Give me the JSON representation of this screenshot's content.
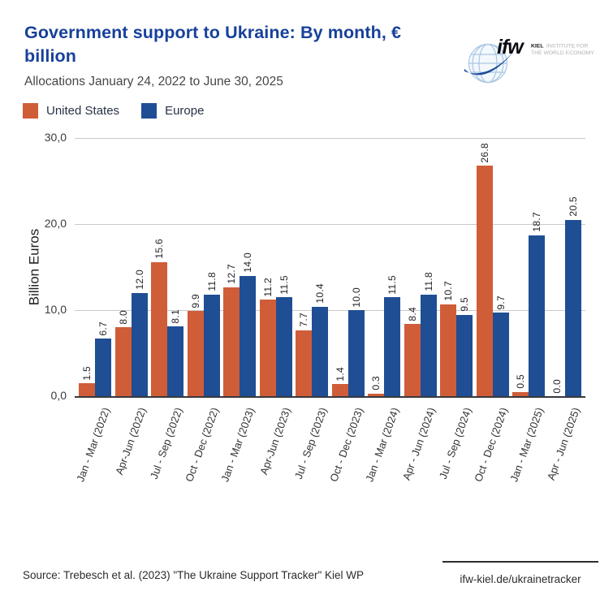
{
  "header": {
    "title_line1": "Government support to Ukraine: By month, €",
    "title_line2": "billion",
    "subtitle": "Allocations January 24, 2022 to June 30, 2025"
  },
  "logo": {
    "brand": "ifw",
    "org_bold": "KIEL",
    "org_line1_rest": "INSTITUTE FOR",
    "org_line2": "THE WORLD ECONOMY"
  },
  "colors": {
    "title": "#17419a",
    "united_states": "#cf5d38",
    "europe": "#1f4e94"
  },
  "chart_data": {
    "type": "bar",
    "title": "Government support to Ukraine: By month, € billion",
    "subtitle": "Allocations January 24, 2022 to June 30, 2025",
    "ylabel": "Billion Euros",
    "xlabel": "",
    "ylim": [
      0,
      30
    ],
    "yticks": [
      0,
      10,
      20,
      30
    ],
    "ytick_labels": [
      "0,0",
      "10,0",
      "20,0",
      "30,0"
    ],
    "grid": true,
    "legend_position": "top-left",
    "categories": [
      "Jan - Mar (2022)",
      "Apr-Jun (2022)",
      "Jul - Sep (2022)",
      "Oct - Dec (2022)",
      "Jan - Mar (2023)",
      "Apr-Jun (2023)",
      "Jul - Sep (2023)",
      "Oct - Dec (2023)",
      "Jan - Mar (2024)",
      "Apr - Jun (2024)",
      "Jul - Sep (2024)",
      "Oct - Dec (2024)",
      "Jan - Mar (2025)",
      "Apr - Jun (2025)"
    ],
    "series": [
      {
        "name": "United States",
        "color": "#cf5d38",
        "values": [
          1.5,
          8.0,
          15.6,
          9.9,
          12.7,
          11.2,
          7.7,
          1.4,
          0.3,
          8.4,
          10.7,
          26.8,
          0.5,
          0.0
        ]
      },
      {
        "name": "Europe",
        "color": "#1f4e94",
        "values": [
          6.7,
          12.0,
          8.1,
          11.8,
          14.0,
          11.5,
          10.4,
          10.0,
          11.5,
          11.8,
          9.5,
          9.7,
          18.7,
          20.5
        ]
      }
    ]
  },
  "footer": {
    "source": "Source: Trebesch et al. (2023) \"The Ukraine Support Tracker\" Kiel WP",
    "website": "ifw-kiel.de/ukrainetracker"
  }
}
